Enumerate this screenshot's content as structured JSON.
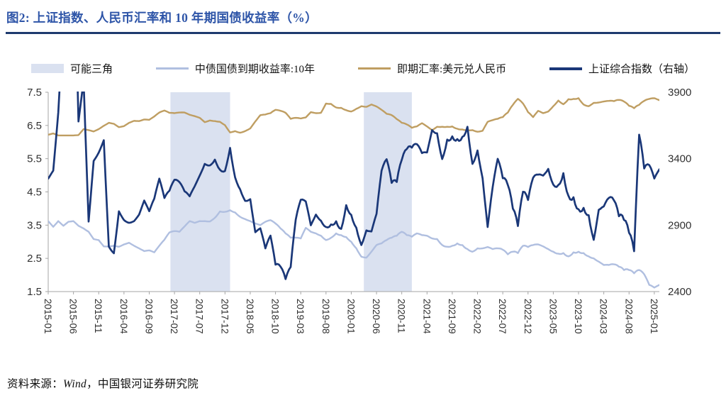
{
  "figure": {
    "title": "图2: 上证指数、人民币汇率和 10 年期国债收益率（%）"
  },
  "footer": {
    "prefix": "资料来源：",
    "source": "Wind",
    "suffix": "，中国银河证券研究院"
  },
  "colors": {
    "title": "#2e55a8",
    "rule": "#1e3a6e",
    "axis": "#a6a6a6",
    "band": "#dae1f0",
    "yield_line": "#b0bfe0",
    "fx_line": "#bf9e62",
    "index_line": "#1a3778"
  },
  "chart_data": {
    "type": "line",
    "title": "上证指数、人民币汇率和10年期国债收益率（%）",
    "x_axis": {
      "unit": "month",
      "first_tick": "2015-01",
      "tick_step": 5,
      "tick_labels": [
        "2015-01",
        "2015-06",
        "2015-11",
        "2016-04",
        "2016-09",
        "2017-02",
        "2017-07",
        "2017-12",
        "2018-05",
        "2018-10",
        "2019-03",
        "2019-08",
        "2020-01",
        "2020-06",
        "2020-11",
        "2021-04",
        "2021-09",
        "2022-02",
        "2022-07",
        "2022-12",
        "2023-05",
        "2023-10",
        "2024-03",
        "2024-08",
        "2025-01"
      ]
    },
    "left_axis": {
      "min": 1.5,
      "max": 7.5,
      "ticks": [
        7.5,
        6.5,
        5.5,
        4.5,
        3.5,
        2.5,
        1.5
      ]
    },
    "right_axis": {
      "min": 2400,
      "max": 3900,
      "ticks": [
        3900,
        3400,
        2900,
        2400
      ]
    },
    "bands": {
      "label": "可能三角",
      "color": "#dae1f0",
      "month_ranges": [
        [
          24.2,
          36.0
        ],
        [
          62.5,
          72.0
        ]
      ]
    },
    "legend": [
      {
        "label": "可能三角",
        "type": "area",
        "color": "#dae1f0",
        "weight": 13
      },
      {
        "label": "中债国债到期收益率:10年",
        "type": "line",
        "color": "#b0bfe0",
        "weight": 3
      },
      {
        "label": "即期汇率:美元兑人民币",
        "type": "line",
        "color": "#bf9e62",
        "weight": 3
      },
      {
        "label": "上证综合指数（右轴）",
        "type": "line",
        "color": "#1a3778",
        "weight": 4
      }
    ],
    "series": [
      {
        "id": "cgb-10y-yield",
        "name": "中债国债到期收益率:10年",
        "axis": "left",
        "color": "#b0bfe0",
        "width": 2.4,
        "jitter": 0.035,
        "values": [
          3.62,
          3.45,
          3.62,
          3.48,
          3.6,
          3.62,
          3.48,
          3.4,
          3.3,
          3.08,
          3.05,
          2.86,
          2.86,
          2.88,
          2.85,
          2.92,
          2.97,
          2.88,
          2.8,
          2.72,
          2.74,
          2.68,
          2.88,
          3.06,
          3.28,
          3.32,
          3.3,
          3.46,
          3.62,
          3.57,
          3.62,
          3.62,
          3.61,
          3.72,
          3.91,
          3.9,
          3.95,
          3.88,
          3.75,
          3.68,
          3.62,
          3.55,
          3.5,
          3.6,
          3.65,
          3.55,
          3.4,
          3.25,
          3.12,
          3.12,
          3.1,
          3.42,
          3.3,
          3.25,
          3.18,
          3.05,
          3.12,
          3.25,
          3.2,
          3.14,
          3.0,
          2.8,
          2.55,
          2.52,
          2.7,
          2.9,
          2.95,
          3.05,
          3.12,
          3.18,
          3.3,
          3.2,
          3.15,
          3.25,
          3.2,
          3.18,
          3.1,
          3.08,
          2.9,
          2.85,
          2.88,
          2.95,
          2.9,
          2.78,
          2.7,
          2.8,
          2.8,
          2.84,
          2.78,
          2.8,
          2.76,
          2.62,
          2.7,
          2.66,
          2.88,
          2.84,
          2.9,
          2.92,
          2.86,
          2.78,
          2.7,
          2.64,
          2.66,
          2.56,
          2.68,
          2.7,
          2.66,
          2.56,
          2.5,
          2.4,
          2.3,
          2.3,
          2.32,
          2.25,
          2.15,
          2.15,
          2.05,
          2.15,
          2.02,
          1.7,
          1.62,
          1.7
        ]
      },
      {
        "id": "usdcny-spot",
        "name": "即期汇率:美元兑人民币",
        "axis": "left",
        "color": "#bf9e62",
        "width": 2.4,
        "jitter": 0.02,
        "values": [
          6.22,
          6.26,
          6.2,
          6.2,
          6.2,
          6.2,
          6.21,
          6.39,
          6.36,
          6.32,
          6.39,
          6.49,
          6.58,
          6.55,
          6.45,
          6.48,
          6.58,
          6.64,
          6.63,
          6.68,
          6.67,
          6.77,
          6.89,
          6.95,
          6.88,
          6.87,
          6.89,
          6.89,
          6.82,
          6.78,
          6.73,
          6.6,
          6.65,
          6.63,
          6.61,
          6.51,
          6.29,
          6.33,
          6.28,
          6.33,
          6.41,
          6.62,
          6.81,
          6.83,
          6.87,
          6.97,
          6.94,
          6.88,
          6.7,
          6.73,
          6.71,
          6.74,
          6.9,
          6.87,
          6.88,
          7.16,
          7.15,
          7.04,
          7.03,
          6.96,
          6.92,
          7.0,
          7.08,
          7.06,
          7.13,
          7.07,
          6.97,
          6.85,
          6.81,
          6.69,
          6.58,
          6.53,
          6.43,
          6.47,
          6.57,
          6.47,
          6.36,
          6.46,
          6.46,
          6.46,
          6.47,
          6.4,
          6.38,
          6.36,
          6.36,
          6.31,
          6.34,
          6.61,
          6.66,
          6.7,
          6.75,
          6.89,
          7.12,
          7.3,
          7.16,
          6.9,
          6.75,
          6.94,
          6.87,
          6.92,
          7.08,
          7.25,
          7.14,
          7.29,
          7.3,
          7.32,
          7.13,
          7.08,
          7.18,
          7.19,
          7.22,
          7.24,
          7.23,
          7.27,
          7.22,
          7.09,
          7.02,
          7.12,
          7.24,
          7.3,
          7.32,
          7.26
        ]
      },
      {
        "id": "sse-composite",
        "name": "上证综合指数（右轴）",
        "axis": "right",
        "color": "#1a3778",
        "width": 2.7,
        "jitter": 40,
        "values": [
          3250,
          3310,
          3748,
          4442,
          4612,
          5166,
          3680,
          3988,
          2927,
          3383,
          3445,
          3539,
          2738,
          2688,
          3004,
          2938,
          2917,
          2930,
          2979,
          3085,
          3005,
          3100,
          3250,
          3104,
          3159,
          3242,
          3223,
          3155,
          3117,
          3192,
          3273,
          3361,
          3349,
          3393,
          3317,
          3307,
          3481,
          3259,
          3169,
          3082,
          3095,
          2847,
          2876,
          2725,
          2821,
          2603,
          2588,
          2494,
          2585,
          2941,
          3091,
          3078,
          2899,
          2979,
          2933,
          2886,
          2905,
          2929,
          2872,
          3050,
          2977,
          2880,
          2750,
          2860,
          2852,
          2985,
          3310,
          3396,
          3218,
          3225,
          3392,
          3473,
          3483,
          3509,
          3442,
          3447,
          3615,
          3591,
          3397,
          3544,
          3568,
          3547,
          3564,
          3640,
          3361,
          3462,
          3252,
          2886,
          3186,
          3399,
          3253,
          3202,
          3024,
          2893,
          3151,
          3089,
          3256,
          3280,
          3273,
          3323,
          3205,
          3202,
          3291,
          3120,
          3110,
          3019,
          3030,
          2975,
          2789,
          3015,
          3041,
          3105,
          3087,
          2967,
          2939,
          2842,
          2704,
          3580,
          3326,
          3352,
          3251,
          3320
        ]
      }
    ]
  }
}
